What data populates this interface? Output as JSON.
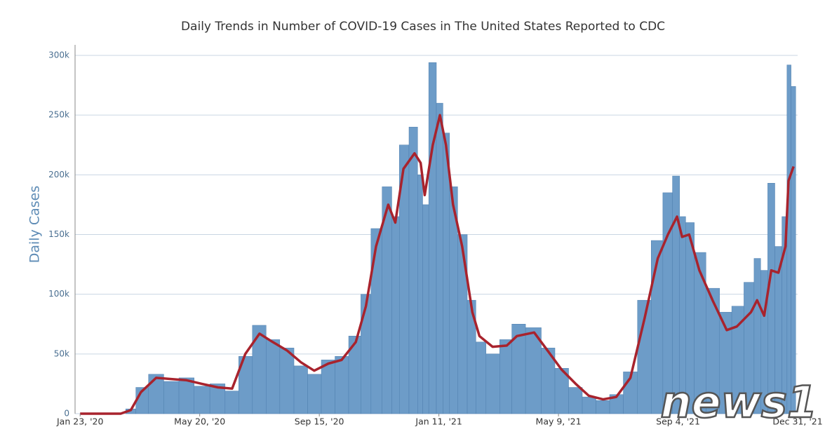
{
  "chart_data": {
    "type": "bar_line",
    "title": "Daily Trends in Number of COVID-19 Cases in The United States Reported to CDC",
    "y_label": "Daily Cases",
    "watermark": "news1",
    "x": [
      0,
      20,
      40,
      50,
      60,
      75,
      90,
      105,
      120,
      136,
      150,
      163,
      177,
      190,
      204,
      218,
      231,
      245,
      258,
      272,
      282,
      292,
      304,
      311,
      319,
      330,
      336,
      340,
      348,
      355,
      361,
      368,
      377,
      387,
      394,
      407,
      421,
      431,
      448,
      462,
      475,
      489,
      502,
      516,
      529,
      543,
      557,
      570,
      580,
      589,
      594,
      601,
      611,
      624,
      638,
      648,
      662,
      668,
      675,
      682,
      689,
      696,
      699,
      704
    ],
    "series": [
      {
        "type": "bar",
        "color": "#6d9cc8",
        "values": [
          0,
          0,
          0,
          4,
          22,
          33,
          27,
          30,
          23,
          25,
          19,
          48,
          74,
          62,
          55,
          40,
          33,
          45,
          48,
          65,
          100,
          155,
          190,
          165,
          225,
          240,
          200,
          175,
          294,
          260,
          235,
          190,
          150,
          95,
          60,
          50,
          62,
          75,
          72,
          55,
          38,
          22,
          14,
          11,
          16,
          35,
          95,
          145,
          185,
          199,
          165,
          160,
          135,
          105,
          85,
          90,
          110,
          130,
          120,
          193,
          140,
          165,
          292,
          274
        ]
      },
      {
        "type": "line",
        "color": "#a8232d",
        "values": [
          0,
          0,
          0,
          3,
          18,
          30,
          29,
          28,
          25,
          22,
          21,
          50,
          67,
          60,
          53,
          43,
          36,
          42,
          45,
          60,
          90,
          140,
          175,
          160,
          205,
          218,
          210,
          183,
          225,
          250,
          225,
          175,
          140,
          85,
          65,
          56,
          57,
          65,
          68,
          52,
          37,
          25,
          15,
          12,
          14,
          30,
          80,
          130,
          150,
          165,
          148,
          150,
          120,
          95,
          70,
          73,
          85,
          95,
          82,
          120,
          118,
          140,
          195,
          207
        ]
      }
    ],
    "xlim": [
      -5,
      708
    ],
    "xticks": [
      {
        "value": 0,
        "label": "Jan 23, '20"
      },
      {
        "value": 118,
        "label": "May 20, '20"
      },
      {
        "value": 236,
        "label": "Sep 15, '20"
      },
      {
        "value": 354,
        "label": "Jan 11, '21"
      },
      {
        "value": 472,
        "label": "May 9, '21"
      },
      {
        "value": 590,
        "label": "Sep 4, '21"
      },
      {
        "value": 708,
        "label": "Dec 31, '21"
      }
    ],
    "ylim": [
      0,
      300
    ],
    "yticks": [
      0,
      {
        "value": 50,
        "label": "50k"
      },
      {
        "value": 100,
        "label": "100k"
      },
      {
        "value": 150,
        "label": "150k"
      },
      {
        "value": 200,
        "label": "200k"
      },
      {
        "value": 250,
        "label": "250k"
      },
      {
        "value": 300,
        "label": "300k"
      }
    ],
    "grid": true
  }
}
